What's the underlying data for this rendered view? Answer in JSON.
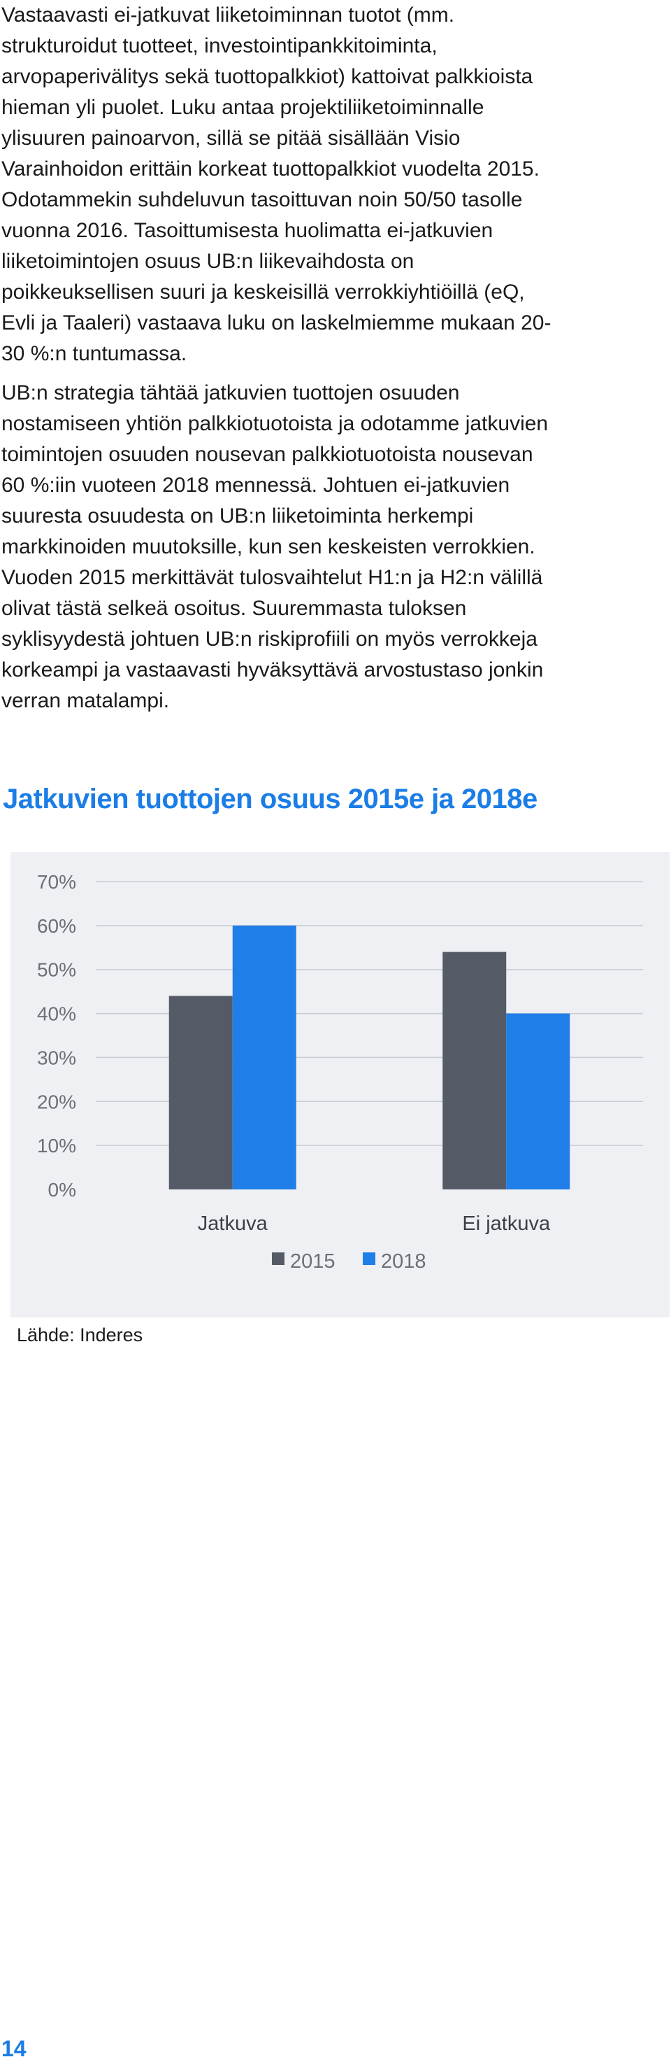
{
  "body": {
    "paragraph1": "Vastaavasti ei-jatkuvat liiketoiminnan tuotot (mm.\nstrukturoidut tuotteet, investointipankkitoiminta,\narvopaperivälitys sekä tuottopalkkiot) kattoivat palkkioista\nhieman yli puolet. Luku antaa projektiliiketoiminnalle\nylisuuren painoarvon, sillä se pitää sisällään Visio\nVarainhoidon erittäin korkeat tuottopalkkiot vuodelta 2015.\nOdotammekin suhdeluvun tasoittuvan noin 50/50 tasolle\nvuonna 2016. Tasoittumisesta huolimatta ei-jatkuvien\nliiketoimintojen osuus UB:n liikevaihdosta on\npoikkeuksellisen suuri ja keskeisillä verrokkiyhtiöillä (eQ,\nEvli ja Taaleri) vastaava luku on laskelmiemme mukaan 20-\n30 %:n tuntumassa.",
    "paragraph2": "UB:n strategia tähtää jatkuvien tuottojen osuuden\nnostamiseen yhtiön palkkiotuotoista ja odotamme jatkuvien\ntoimintojen osuuden nousevan palkkiotuotoista nousevan\n60 %:iin vuoteen 2018 mennessä. Johtuen ei-jatkuvien\nsuuresta osuudesta on UB:n liiketoiminta herkempi\nmarkkinoiden muutoksille, kun sen keskeisten verrokkien.\nVuoden 2015 merkittävät tulosvaihtelut H1:n ja H2:n välillä\nolivat tästä selkeä osoitus. Suuremmasta tuloksen\nsyklisyydestä johtuen UB:n riskiprofiili on myös verrokkeja\nkorkeampi ja vastaavasti hyväksyttävä arvostustaso jonkin\nverran matalampi."
  },
  "chart_title": "Jatkuvien tuottojen osuus 2015e ja 2018e",
  "chart_data": {
    "type": "bar",
    "title": "Jatkuvien tuottojen osuus 2015e ja 2018e",
    "categories": [
      "Jatkuva",
      "Ei jatkuva"
    ],
    "series": [
      {
        "name": "2015",
        "values": [
          44,
          54
        ],
        "color": "#545b66"
      },
      {
        "name": "2018",
        "values": [
          60,
          40
        ],
        "color": "#1f7ee8"
      }
    ],
    "y_ticks": [
      "0%",
      "10%",
      "20%",
      "30%",
      "40%",
      "50%",
      "60%",
      "70%"
    ],
    "ylim": [
      0,
      70
    ],
    "xlabel": "",
    "ylabel": "",
    "grid": true,
    "legend_position": "bottom",
    "background_color": "#eef0f4",
    "grid_color": "#c9ccd2"
  },
  "source": "Lähde: Inderes",
  "page_number": "14",
  "colors": {
    "accent": "#1b7de6"
  }
}
